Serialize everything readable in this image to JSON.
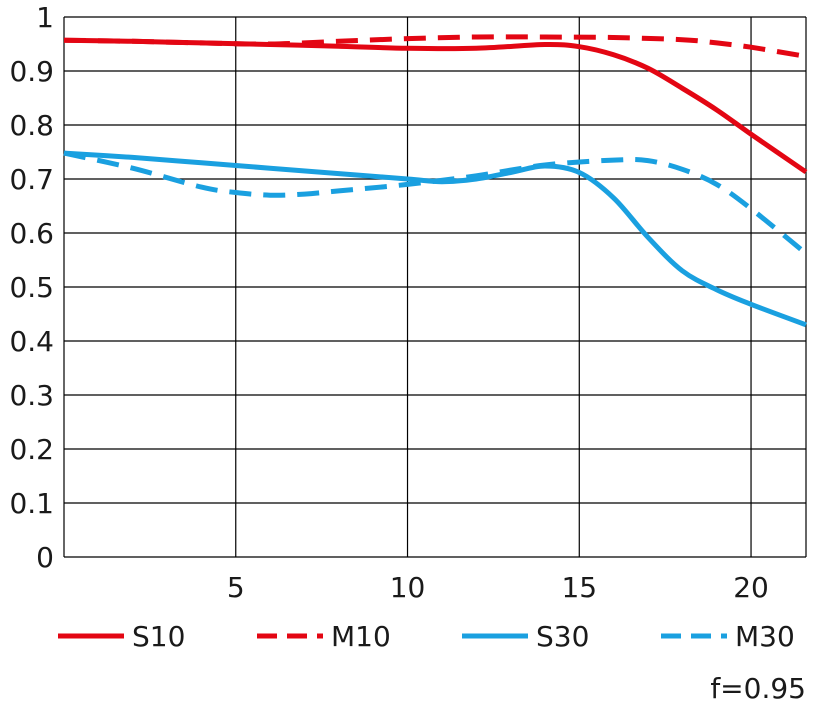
{
  "chart_data": {
    "type": "line",
    "title": "",
    "xlabel": "",
    "ylabel": "",
    "xlim": [
      0,
      21.6
    ],
    "ylim": [
      0,
      1
    ],
    "x_ticks": [
      "5",
      "10",
      "15",
      "20"
    ],
    "y_ticks": [
      "0",
      "0.1",
      "0.2",
      "0.3",
      "0.4",
      "0.5",
      "0.6",
      "0.7",
      "0.8",
      "0.9",
      "1"
    ],
    "grid": true,
    "legend_placement": "bottom",
    "note": "f=0.95",
    "series": [
      {
        "name": "S10",
        "color": "#e30613",
        "dash": "solid",
        "x": [
          0,
          2,
          4,
          6,
          8,
          10,
          12,
          14,
          15,
          16,
          17,
          18,
          19,
          20,
          21.6
        ],
        "y": [
          0.957,
          0.955,
          0.952,
          0.949,
          0.946,
          0.942,
          0.942,
          0.949,
          0.945,
          0.93,
          0.905,
          0.868,
          0.828,
          0.783,
          0.713
        ]
      },
      {
        "name": "M10",
        "color": "#e30613",
        "dash": "dashed",
        "x": [
          0,
          2,
          4,
          6,
          8,
          10,
          12,
          14,
          16,
          18,
          19,
          20,
          21.6
        ],
        "y": [
          0.957,
          0.955,
          0.952,
          0.95,
          0.955,
          0.96,
          0.963,
          0.963,
          0.962,
          0.958,
          0.952,
          0.944,
          0.927
        ]
      },
      {
        "name": "S30",
        "color": "#1aa0e0",
        "dash": "solid",
        "x": [
          0,
          2,
          4,
          6,
          8,
          10,
          11,
          12,
          13,
          14,
          15,
          16,
          17,
          18,
          19,
          20,
          21.6
        ],
        "y": [
          0.748,
          0.74,
          0.73,
          0.72,
          0.71,
          0.7,
          0.695,
          0.7,
          0.712,
          0.724,
          0.712,
          0.665,
          0.592,
          0.53,
          0.495,
          0.468,
          0.43
        ]
      },
      {
        "name": "M30",
        "color": "#1aa0e0",
        "dash": "dashed",
        "x": [
          0,
          2,
          4,
          5,
          6,
          7,
          8,
          10,
          12,
          14,
          16,
          17,
          18,
          19,
          20,
          21.6
        ],
        "y": [
          0.748,
          0.72,
          0.685,
          0.675,
          0.67,
          0.672,
          0.678,
          0.69,
          0.706,
          0.726,
          0.735,
          0.734,
          0.718,
          0.69,
          0.645,
          0.562
        ]
      }
    ]
  }
}
